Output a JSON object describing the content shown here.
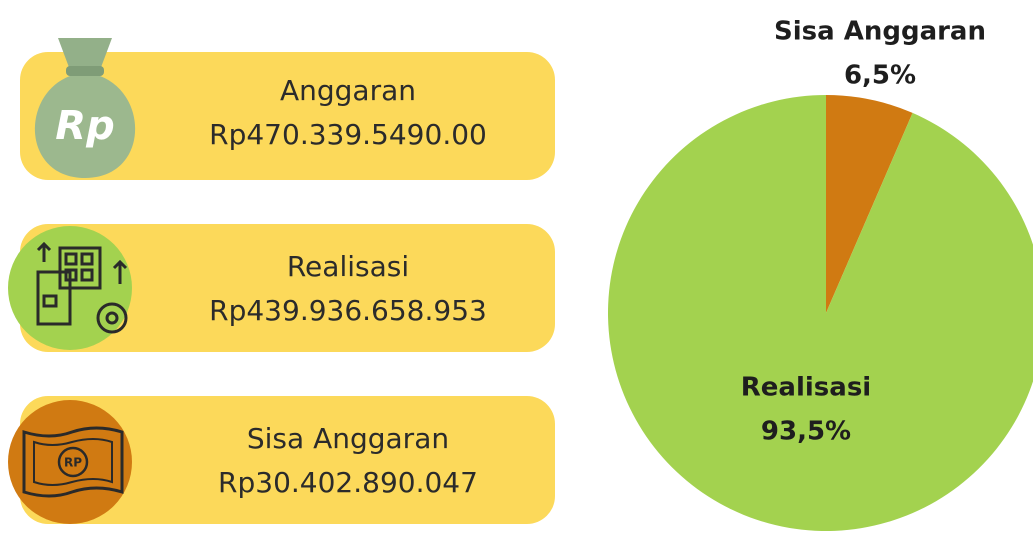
{
  "cards": [
    {
      "label": "Anggaran",
      "value": "Rp470.339.5490.00",
      "icon_text": "Rp"
    },
    {
      "label": "Realisasi",
      "value": "Rp439.936.658.953"
    },
    {
      "label": "Sisa Anggaran",
      "value": "Rp30.402.890.047",
      "icon_text": "RP"
    }
  ],
  "chart_data": {
    "type": "pie",
    "categories": [
      "Sisa Anggaran",
      "Realisasi"
    ],
    "values": [
      6.5,
      93.5
    ],
    "value_labels": [
      "6,5%",
      "93,5%"
    ],
    "colors": [
      "#d07a12",
      "#a3d24f"
    ]
  }
}
